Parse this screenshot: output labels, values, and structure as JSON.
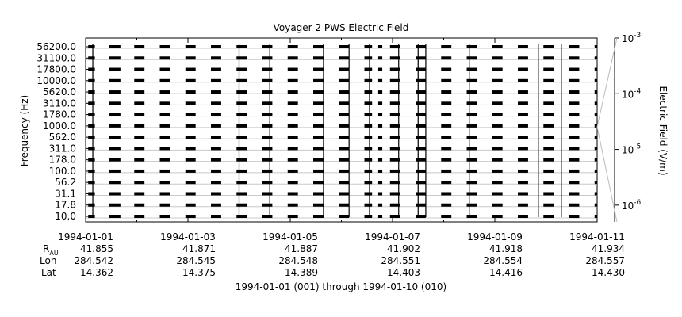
{
  "chart_data": {
    "type": "heatmap",
    "title": "Voyager 2 PWS Electric Field",
    "ylabel": "Frequency (Hz)",
    "colorbar_label": "Electric Field (V/m)",
    "colorbar_scale": "log",
    "colorbar_range": [
      5e-07,
      0.001
    ],
    "colorbar_ticks": [
      {
        "value": 1e-06,
        "mantissa": "10",
        "exp": "-6"
      },
      {
        "value": 1e-05,
        "mantissa": "10",
        "exp": "-5"
      },
      {
        "value": 0.0001,
        "mantissa": "10",
        "exp": "-4"
      },
      {
        "value": 0.001,
        "mantissa": "10",
        "exp": "-3"
      }
    ],
    "frequency_channels": [
      "56200.0",
      "31100.0",
      "17800.0",
      "10000.0",
      "5620.0",
      "3110.0",
      "1780.0",
      "1000.0",
      "562.0",
      "311.0",
      "178.0",
      "100.0",
      "56.2",
      "31.1",
      "17.8",
      "10.0"
    ],
    "x_range_days": [
      0,
      10
    ],
    "x_ticks": [
      {
        "day": 0,
        "date": "1994-01-01",
        "r_au": "41.855",
        "lon": "284.542",
        "lat": "-14.362"
      },
      {
        "day": 2,
        "date": "1994-01-03",
        "r_au": "41.871",
        "lon": "284.545",
        "lat": "-14.375"
      },
      {
        "day": 4,
        "date": "1994-01-05",
        "r_au": "41.887",
        "lon": "284.548",
        "lat": "-14.389"
      },
      {
        "day": 6,
        "date": "1994-01-07",
        "r_au": "41.902",
        "lon": "284.551",
        "lat": "-14.403"
      },
      {
        "day": 8,
        "date": "1994-01-09",
        "r_au": "41.918",
        "lon": "284.554",
        "lat": "-14.416"
      },
      {
        "day": 10,
        "date": "1994-01-11",
        "r_au": "41.934",
        "lon": "284.557",
        "lat": "-14.430"
      }
    ],
    "ephemeris_labels": {
      "r": "R",
      "r_sub": "AU",
      "lon": "Lon",
      "lat": "Lat"
    },
    "data_segments_days": [
      [
        0.05,
        0.18
      ],
      [
        0.45,
        0.68
      ],
      [
        0.95,
        1.15
      ],
      [
        1.45,
        1.65
      ],
      [
        1.95,
        2.15
      ],
      [
        2.45,
        2.65
      ],
      [
        2.95,
        3.15
      ],
      [
        3.45,
        3.65
      ],
      [
        3.95,
        4.1
      ],
      [
        4.1,
        4.15
      ],
      [
        4.45,
        4.65
      ],
      [
        4.95,
        5.15
      ],
      [
        5.45,
        5.6
      ],
      [
        5.72,
        5.8
      ],
      [
        5.95,
        6.15
      ],
      [
        6.45,
        6.65
      ],
      [
        6.95,
        7.15
      ],
      [
        7.45,
        7.65
      ],
      [
        7.95,
        8.15
      ],
      [
        8.45,
        8.65
      ],
      [
        8.95,
        9.15
      ],
      [
        9.45,
        9.65
      ],
      [
        9.95,
        10.0
      ]
    ],
    "spikes_days": [
      0.14,
      3.0,
      3.6,
      4.65,
      5.15,
      5.55,
      6.12,
      6.5,
      6.65,
      7.5,
      8.85,
      9.3
    ]
  },
  "footer": {
    "range_label": "1994-01-01 (001) through 1994-01-10 (010)"
  }
}
